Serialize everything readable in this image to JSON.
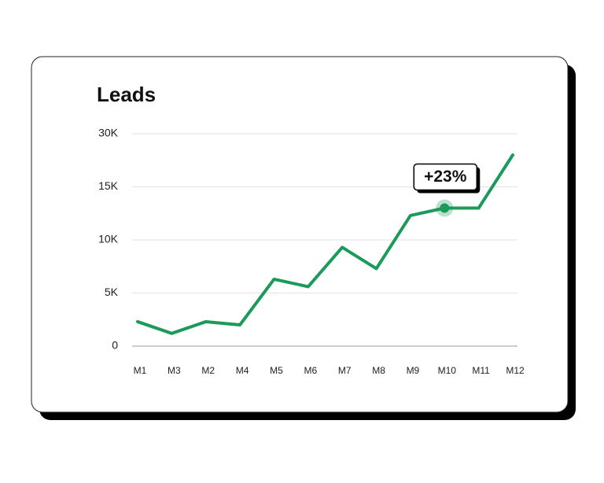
{
  "chart_data": {
    "type": "line",
    "title": "Leads",
    "categories": [
      "M1",
      "M3",
      "M2",
      "M4",
      "M5",
      "M6",
      "M7",
      "M8",
      "M9",
      "M10",
      "M11",
      "M12"
    ],
    "series": [
      {
        "name": "Leads",
        "color": "#1b9a5b",
        "values": [
          2300,
          1200,
          2300,
          2000,
          6300,
          5600,
          9300,
          7300,
          12300,
          13000,
          13000,
          24000
        ]
      }
    ],
    "ylim": [
      0,
      30000
    ],
    "yticks": [
      {
        "value": 0,
        "label": "0"
      },
      {
        "value": 5000,
        "label": "5K"
      },
      {
        "value": 10000,
        "label": "10K"
      },
      {
        "value": 15000,
        "label": "15K"
      },
      {
        "value": 30000,
        "label": "30K"
      }
    ],
    "grid": true,
    "annotations": [
      {
        "label": "+23%",
        "x": "M10"
      }
    ]
  }
}
